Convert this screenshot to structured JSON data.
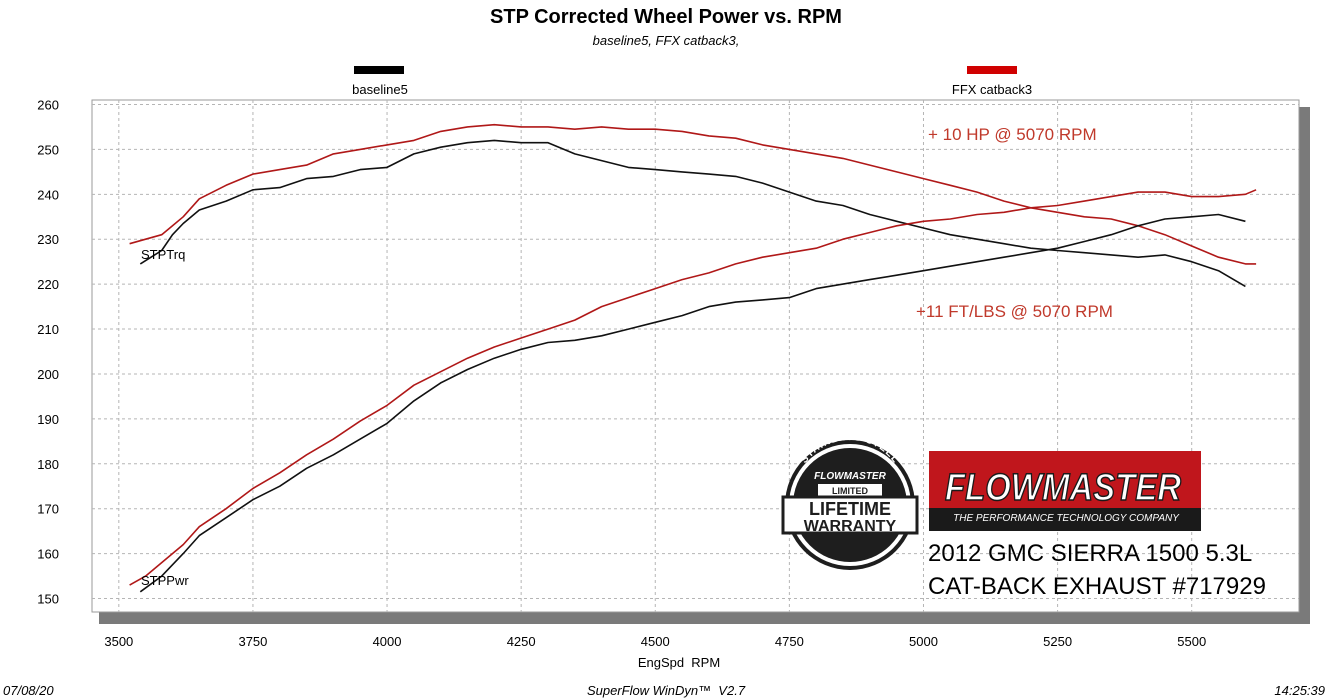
{
  "chart_data": {
    "type": "line",
    "title": "STP Corrected Wheel Power vs. RPM",
    "subtitle": "baseline5, FFX catback3,",
    "xlabel": "EngSpd  RPM",
    "ylabel": "",
    "xlim": [
      3450,
      5700
    ],
    "ylim": [
      147,
      261
    ],
    "xticks": [
      3500,
      3750,
      4000,
      4250,
      4500,
      4750,
      5000,
      5250,
      5500
    ],
    "yticks": [
      150,
      160,
      170,
      180,
      190,
      200,
      210,
      220,
      230,
      240,
      250,
      260
    ],
    "grid": true,
    "legend_position": "top",
    "legend": [
      {
        "name": "baseline5",
        "color": "#000000"
      },
      {
        "name": "FFX catback3",
        "color": "#c00000"
      }
    ],
    "series": [
      {
        "name": "baseline5",
        "curve": "STPTrq",
        "color": "#111111",
        "x": [
          3540,
          3580,
          3600,
          3620,
          3650,
          3700,
          3750,
          3800,
          3850,
          3900,
          3950,
          4000,
          4050,
          4100,
          4150,
          4200,
          4250,
          4300,
          4350,
          4400,
          4450,
          4500,
          4550,
          4600,
          4650,
          4700,
          4750,
          4800,
          4850,
          4900,
          4950,
          5000,
          5050,
          5100,
          5150,
          5200,
          5250,
          5300,
          5350,
          5400,
          5450,
          5500,
          5550,
          5600
        ],
        "y": [
          224.5,
          227.5,
          231,
          233.5,
          236.5,
          238.5,
          241,
          241.5,
          243.5,
          244,
          245.5,
          246,
          249,
          250.5,
          251.5,
          252,
          251.5,
          251.5,
          249,
          247.5,
          246,
          245.5,
          245,
          244.5,
          244,
          242.5,
          240.5,
          238.5,
          237.5,
          235.5,
          234,
          232.5,
          231,
          230,
          229,
          228,
          227.5,
          227,
          226.5,
          226,
          226.5,
          225,
          223,
          219.5
        ]
      },
      {
        "name": "FFX catback3",
        "curve": "STPTrq",
        "color": "#b01818",
        "x": [
          3520,
          3550,
          3580,
          3600,
          3620,
          3650,
          3700,
          3750,
          3800,
          3850,
          3900,
          3950,
          4000,
          4050,
          4100,
          4150,
          4200,
          4250,
          4300,
          4350,
          4400,
          4450,
          4500,
          4550,
          4600,
          4650,
          4700,
          4750,
          4800,
          4850,
          4900,
          4950,
          5000,
          5050,
          5100,
          5150,
          5200,
          5250,
          5300,
          5350,
          5400,
          5450,
          5500,
          5550,
          5600,
          5620
        ],
        "y": [
          229,
          230,
          231,
          233,
          235,
          239,
          242,
          244.5,
          245.5,
          246.5,
          249,
          250,
          251,
          252,
          254,
          255,
          255.5,
          255,
          255,
          254.5,
          255,
          254.5,
          254.5,
          254,
          253,
          252.5,
          251,
          250,
          249,
          248,
          246.5,
          245,
          243.5,
          242,
          240.5,
          238.5,
          237,
          236,
          235,
          234.5,
          233,
          231,
          228.5,
          226,
          224.5,
          224.5
        ]
      },
      {
        "name": "baseline5",
        "curve": "STPPwr",
        "color": "#111111",
        "x": [
          3540,
          3580,
          3620,
          3650,
          3700,
          3750,
          3800,
          3850,
          3900,
          3950,
          4000,
          4050,
          4100,
          4150,
          4200,
          4250,
          4300,
          4350,
          4400,
          4450,
          4500,
          4550,
          4600,
          4650,
          4700,
          4750,
          4800,
          4850,
          4900,
          4950,
          5000,
          5050,
          5100,
          5150,
          5200,
          5250,
          5300,
          5350,
          5400,
          5450,
          5500,
          5550,
          5600
        ],
        "y": [
          151.5,
          155,
          160,
          164,
          168,
          172,
          175,
          179,
          182,
          185.5,
          189,
          194,
          198,
          201,
          203.5,
          205.5,
          207,
          207.5,
          208.5,
          210,
          211.5,
          213,
          215,
          216,
          216.5,
          217,
          219,
          220,
          221,
          222,
          223,
          224,
          225,
          226,
          227,
          228,
          229.5,
          231,
          233,
          234.5,
          235,
          235.5,
          234
        ]
      },
      {
        "name": "FFX catback3",
        "curve": "STPPwr",
        "color": "#b01818",
        "x": [
          3520,
          3550,
          3580,
          3620,
          3650,
          3700,
          3750,
          3800,
          3850,
          3900,
          3950,
          4000,
          4050,
          4100,
          4150,
          4200,
          4250,
          4300,
          4350,
          4400,
          4450,
          4500,
          4550,
          4600,
          4650,
          4700,
          4750,
          4800,
          4850,
          4900,
          4950,
          5000,
          5050,
          5100,
          5150,
          5200,
          5250,
          5300,
          5350,
          5400,
          5450,
          5500,
          5550,
          5600,
          5620
        ],
        "y": [
          153,
          155,
          158,
          162,
          166,
          170,
          174.5,
          178,
          182,
          185.5,
          189.5,
          193,
          197.5,
          200.5,
          203.5,
          206,
          208,
          210,
          212,
          215,
          217,
          219,
          221,
          222.5,
          224.5,
          226,
          227,
          228,
          230,
          231.5,
          233,
          234,
          234.5,
          235.5,
          236,
          237,
          237.5,
          238.5,
          239.5,
          240.5,
          240.5,
          239.5,
          239.5,
          240,
          241
        ]
      }
    ],
    "curve_labels": [
      "STPTrq",
      "STPPwr"
    ],
    "annotations": [
      "+ 10 HP @ 5070 RPM",
      "+11 FT/LBS @ 5070 RPM"
    ],
    "colors": {
      "baseline": "#111111",
      "ffx": "#b01818",
      "annotation": "#c0392b",
      "plot_shadow": "#777777",
      "grid": "#b5b5b5"
    }
  },
  "footer": {
    "date": "07/08/20",
    "software": "SuperFlow WinDyn™  V2.7",
    "time": "14:25:39"
  },
  "badge": {
    "top": "STAINLESS STEEL",
    "center": "FLOWMASTER",
    "sub": "LIMITED",
    "line1": "LIFETIME",
    "line2": "WARRANTY"
  },
  "brand": {
    "name": "FLOWMASTER",
    "tagline": "THE PERFORMANCE TECHNOLOGY COMPANY",
    "colors": {
      "red": "#c0161c",
      "dark": "#1a1a1a"
    }
  },
  "vehicle": {
    "line1": "2012 GMC SIERRA 1500 5.3L",
    "line2": "CAT-BACK EXHAUST #717929"
  }
}
